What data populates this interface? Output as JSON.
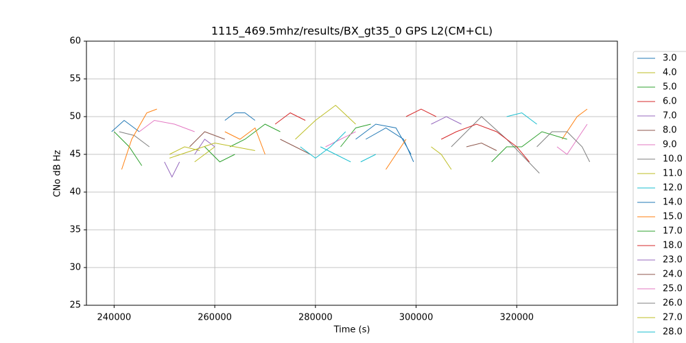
{
  "chart_data": {
    "type": "line",
    "title": "1115_469.5mhz/results/BX_gt35_0 GPS L2(CM+CL)",
    "x_label": "Time (s)",
    "y_label": "CNo dB Hz",
    "xlim": [
      234500,
      340000
    ],
    "ylim": [
      25,
      60
    ],
    "xticks": [
      240000,
      260000,
      280000,
      300000,
      320000
    ],
    "yticks": [
      25,
      30,
      35,
      40,
      45,
      50,
      55,
      60
    ],
    "grid": true,
    "series": [
      {
        "name": "3.0",
        "color": "#1f77b4",
        "x": [
          239500,
          242000,
          245000,
          null,
          262000,
          264000,
          266000,
          268000,
          null,
          288000,
          292000,
          296000,
          299000
        ],
        "values": [
          48,
          49.5,
          48,
          null,
          49.5,
          50.5,
          50.5,
          49.5,
          null,
          47,
          49,
          48.5,
          45
        ]
      },
      {
        "name": "4.0",
        "color": "#bcbd22",
        "x": [
          251000,
          254000,
          257000,
          null,
          276000,
          280000,
          284000,
          288000
        ],
        "values": [
          45,
          46,
          45.5,
          null,
          47,
          49.5,
          51.5,
          49
        ]
      },
      {
        "name": "5.0",
        "color": "#2ca02c",
        "x": [
          240000,
          243000,
          245500,
          null,
          263000,
          266000,
          270000,
          273000,
          null,
          285000,
          288000,
          291000
        ],
        "values": [
          48,
          46,
          43.5,
          null,
          46,
          47,
          49,
          48,
          null,
          46,
          48.5,
          49
        ]
      },
      {
        "name": "6.0",
        "color": "#d62728",
        "x": [
          272000,
          275000,
          278000,
          null,
          298000,
          301000,
          304000
        ],
        "values": [
          49,
          50.5,
          49.5,
          null,
          50,
          51,
          50
        ]
      },
      {
        "name": "7.0",
        "color": "#9467bd",
        "x": [
          250000,
          251500,
          253000,
          null,
          303000,
          306000,
          309000
        ],
        "values": [
          44,
          42,
          44,
          null,
          49,
          50,
          49
        ]
      },
      {
        "name": "8.0",
        "color": "#8c564b",
        "x": [
          255000,
          258000,
          262000,
          null,
          273000,
          276000,
          279000
        ],
        "values": [
          46,
          48,
          47,
          null,
          47,
          46,
          45
        ]
      },
      {
        "name": "9.0",
        "color": "#e377c2",
        "x": [
          245000,
          248000,
          252000,
          256000,
          null,
          282000,
          285000,
          288000
        ],
        "values": [
          48,
          49.5,
          49,
          48,
          null,
          46,
          47,
          48
        ]
      },
      {
        "name": "10.0",
        "color": "#7f7f7f",
        "x": [
          241000,
          244000,
          247000,
          null,
          307000,
          310000,
          313000,
          318000,
          324500
        ],
        "values": [
          48,
          47.5,
          46,
          null,
          46,
          48,
          50,
          47,
          42.5
        ]
      },
      {
        "name": "11.0",
        "color": "#bcbd22",
        "x": [
          256000,
          258000,
          260000,
          null,
          303000,
          305000,
          307000
        ],
        "values": [
          44,
          45,
          46,
          null,
          46,
          45,
          43
        ]
      },
      {
        "name": "12.0",
        "color": "#17becf",
        "x": [
          277000,
          280000,
          283000,
          286000,
          null,
          289000,
          292000,
          null,
          318000,
          321000,
          324000
        ],
        "values": [
          46,
          44.5,
          46,
          48,
          null,
          44,
          45,
          null,
          50,
          50.5,
          49
        ]
      },
      {
        "name": "14.0",
        "color": "#1f77b4",
        "x": [
          290000,
          294000,
          297500,
          299500
        ],
        "values": [
          47,
          48.5,
          47,
          44
        ]
      },
      {
        "name": "15.0",
        "color": "#ff7f0e",
        "x": [
          241500,
          243500,
          246500,
          248500,
          null,
          262000,
          265000,
          268000,
          270000,
          null,
          294000,
          296000,
          298000,
          null,
          329000,
          332000,
          334000
        ],
        "values": [
          43,
          47,
          50.5,
          51,
          null,
          48,
          47,
          48.5,
          45,
          null,
          43,
          45,
          47,
          null,
          47,
          50,
          51
        ]
      },
      {
        "name": "17.0",
        "color": "#2ca02c",
        "x": [
          258000,
          261000,
          264000,
          null,
          315000,
          318000,
          321000,
          325000,
          330000
        ],
        "values": [
          46,
          44,
          45,
          null,
          44,
          46,
          46,
          48,
          47
        ]
      },
      {
        "name": "18.0",
        "color": "#d62728",
        "x": [
          305000,
          308000,
          312000,
          316000,
          320000,
          322500
        ],
        "values": [
          47,
          48,
          49,
          48,
          46,
          44
        ]
      },
      {
        "name": "23.0",
        "color": "#9467bd",
        "x": [
          256000,
          258000,
          260000
        ],
        "values": [
          45,
          47,
          46
        ]
      },
      {
        "name": "24.0",
        "color": "#8c564b",
        "x": [
          310000,
          313000,
          316000
        ],
        "values": [
          46,
          46.5,
          45.5
        ]
      },
      {
        "name": "25.0",
        "color": "#e377c2",
        "x": [
          328000,
          330000,
          332000,
          334000
        ],
        "values": [
          46,
          45,
          47,
          49
        ]
      },
      {
        "name": "26.0",
        "color": "#7f7f7f",
        "x": [
          324000,
          327000,
          330000,
          333000,
          334500
        ],
        "values": [
          46,
          48,
          48,
          46,
          44
        ]
      },
      {
        "name": "27.0",
        "color": "#bcbd22",
        "x": [
          251000,
          260000,
          268000
        ],
        "values": [
          44.5,
          46.5,
          45.5
        ]
      },
      {
        "name": "28.0",
        "color": "#17becf",
        "x": [
          281000,
          284000,
          287000
        ],
        "values": [
          46,
          45,
          44
        ]
      }
    ]
  }
}
